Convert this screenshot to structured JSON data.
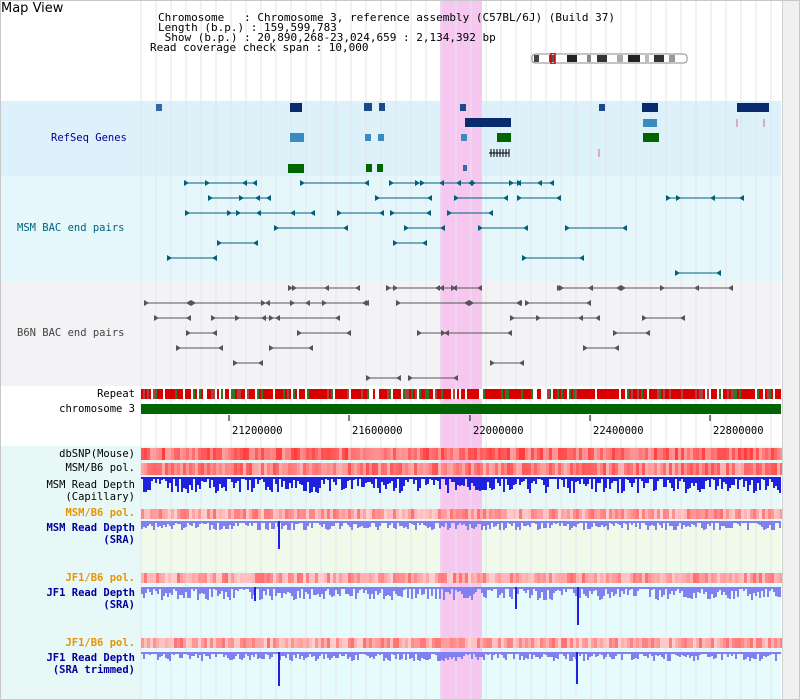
{
  "title": "Map View",
  "header": {
    "chromosome_line": "Chromosome   : Chromosome 3, reference assembly (C57BL/6J) (Build 37)",
    "length_line": "Length (b.p.) : 159,599,783",
    "show_line": " Show (b.p.) : 20,890,268-23,024,659 : 2,134,392 bp",
    "coverage_line": "Read coverage check span : 10,000"
  },
  "tracks": {
    "refseq": "RefSeq Genes",
    "msm_bac": "MSM BAC end pairs",
    "b6n_bac": "B6N BAC end pairs",
    "repeat": "Repeat",
    "chromosome": "chromosome 3",
    "dbsnp": "dbSNP(Mouse)",
    "msm_b6_pol": "MSM/B6 pol.",
    "msm_depth_cap_1": "MSM Read Depth",
    "msm_depth_cap_2": "(Capillary)",
    "msm_b6_pol_2": "MSM/B6 pol.",
    "msm_depth_sra_1": "MSM Read Depth",
    "msm_depth_sra_2": "(SRA)",
    "jf1_b6_pol": "JF1/B6 pol.",
    "jf1_depth_sra_1": "JF1 Read Depth",
    "jf1_depth_sra_2": "(SRA)",
    "jf1_b6_pol_2": "JF1/B6 pol.",
    "jf1_depth_trim_1": "JF1 Read Depth",
    "jf1_depth_trim_2": "(SRA trimmed)"
  },
  "ruler": {
    "ticks": [
      "21200000",
      "21600000",
      "22000000",
      "22400000",
      "22800000"
    ]
  },
  "colors": {
    "refseq_bg": "#dcf1fa",
    "msm_bg": "#e6f7fb",
    "b6n_bg": "#f3f3f6",
    "highlight": "#f6c8f0",
    "repeat_red": "#d90000",
    "chromosome_green": "#006400",
    "blue_label": "#00009c",
    "teal_label": "#006478",
    "orange_label": "#e69600",
    "msm_line": "#00607a",
    "b6n_line": "#555555",
    "depth_blue": "#2020e0",
    "depth_light": "#8080f0"
  }
}
